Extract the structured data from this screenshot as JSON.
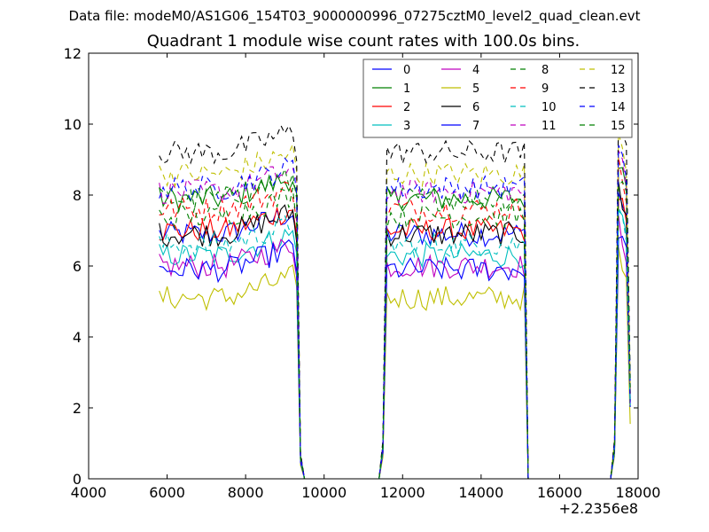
{
  "suptitle": "Data file: modeM0/AS1G06_154T03_9000000996_07275cztM0_level2_quad_clean.evt",
  "chart_data": {
    "type": "line",
    "title": "Quadrant 1 module wise count rates with 100.0s bins.",
    "xlabel": "",
    "ylabel": "",
    "x_offset_label": "+2.2356e8",
    "xlim": [
      4000,
      18000
    ],
    "ylim": [
      0,
      12
    ],
    "xticks": [
      "4000",
      "6000",
      "8000",
      "10000",
      "12000",
      "14000",
      "16000",
      "18000"
    ],
    "yticks": [
      "0",
      "2",
      "4",
      "6",
      "8",
      "10",
      "12"
    ],
    "grid": false,
    "legend_position": "top-right",
    "x_sampling": {
      "start": 5800,
      "step": 100,
      "note_segments": [
        {
          "from": 5800,
          "to": 9300,
          "state": "on"
        },
        {
          "from": 9400,
          "to": 11400,
          "state": "off"
        },
        {
          "from": 11500,
          "to": 15100,
          "state": "on"
        },
        {
          "from": 15200,
          "to": 17300,
          "state": "off"
        },
        {
          "from": 17400,
          "to": 17800,
          "state": "on"
        }
      ]
    },
    "series": [
      {
        "name": "0",
        "color": "#0000ff",
        "dash": "solid",
        "level": 6.9
      },
      {
        "name": "1",
        "color": "#008000",
        "dash": "solid",
        "level": 7.9
      },
      {
        "name": "2",
        "color": "#ff0000",
        "dash": "solid",
        "level": 7.0
      },
      {
        "name": "3",
        "color": "#00bfbf",
        "dash": "solid",
        "level": 6.3
      },
      {
        "name": "4",
        "color": "#bf00bf",
        "dash": "solid",
        "level": 6.0
      },
      {
        "name": "5",
        "color": "#bfbf00",
        "dash": "solid",
        "level": 5.1
      },
      {
        "name": "6",
        "color": "#000000",
        "dash": "solid",
        "level": 6.9
      },
      {
        "name": "7",
        "color": "#0000ff",
        "dash": "solid",
        "level": 5.9
      },
      {
        "name": "8",
        "color": "#008000",
        "dash": "dashed",
        "level": 7.9
      },
      {
        "name": "9",
        "color": "#ff0000",
        "dash": "dashed",
        "level": 7.6
      },
      {
        "name": "10",
        "color": "#00bfbf",
        "dash": "dashed",
        "level": 6.6
      },
      {
        "name": "11",
        "color": "#bf00bf",
        "dash": "dashed",
        "level": 8.1
      },
      {
        "name": "12",
        "color": "#bfbf00",
        "dash": "dashed",
        "level": 8.6
      },
      {
        "name": "13",
        "color": "#000000",
        "dash": "dashed",
        "level": 9.2
      },
      {
        "name": "14",
        "color": "#0000ff",
        "dash": "dashed",
        "level": 8.2
      },
      {
        "name": "15",
        "color": "#008000",
        "dash": "dashed",
        "level": 7.4
      }
    ]
  }
}
